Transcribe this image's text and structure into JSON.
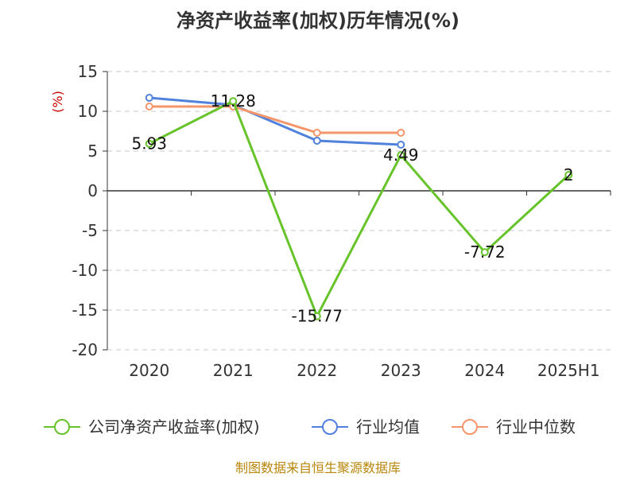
{
  "chart_data": {
    "type": "line",
    "title": "净资产收益率(加权)历年情况(%)",
    "unit_label": "(%)",
    "categories": [
      "2020",
      "2021",
      "2022",
      "2023",
      "2024",
      "2025H1"
    ],
    "ylim": [
      -20,
      15
    ],
    "yticks": [
      15,
      10,
      5,
      0,
      -5,
      -10,
      -15,
      -20
    ],
    "grid": true,
    "legend_position": "bottom",
    "series": [
      {
        "name": "公司净资产收益率(加权)",
        "color": "#66c42a",
        "values": [
          5.93,
          11.28,
          -15.77,
          4.49,
          -7.72,
          2
        ],
        "labels": [
          "5.93",
          "11.28",
          "-15.77",
          "4.49",
          "-7.72",
          "2"
        ]
      },
      {
        "name": "行业均值",
        "color": "#4f81dd",
        "values": [
          11.7,
          10.8,
          6.3,
          5.8,
          null,
          null
        ]
      },
      {
        "name": "行业中位数",
        "color": "#f4956a",
        "values": [
          10.6,
          10.6,
          7.3,
          7.3,
          null,
          null
        ]
      }
    ]
  },
  "source": "制图数据来自恒生聚源数据库"
}
